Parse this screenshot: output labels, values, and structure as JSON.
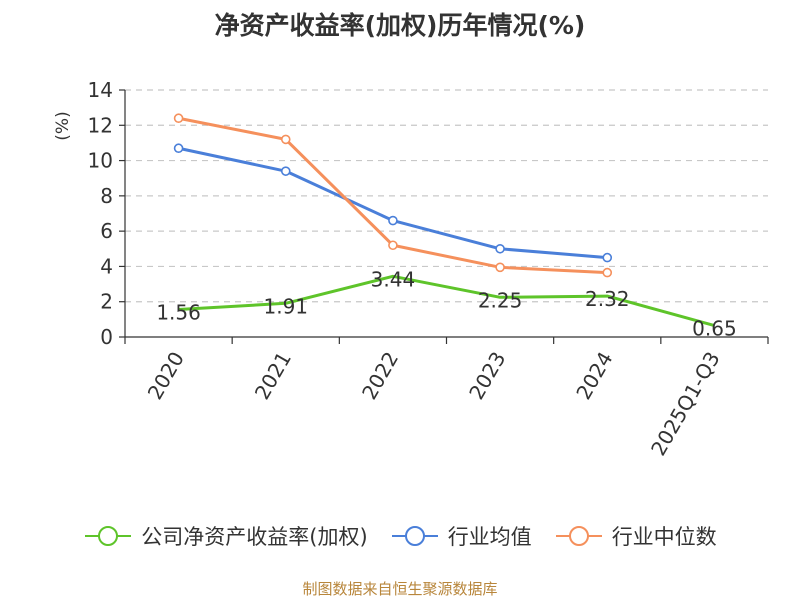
{
  "chart_data": {
    "type": "line",
    "title": "净资产收益率(加权)历年情况(%)",
    "ylabel": "(%)",
    "xlabel": "",
    "categories": [
      "2020",
      "2021",
      "2022",
      "2023",
      "2024",
      "2025Q1-Q3"
    ],
    "ylim": [
      0,
      14
    ],
    "yticks": [
      0,
      2,
      4,
      6,
      8,
      10,
      12,
      14
    ],
    "grid": true,
    "legend_position": "bottom",
    "series": [
      {
        "name": "公司净资产收益率(加权)",
        "color": "#5ec42a",
        "values": [
          1.56,
          1.91,
          3.44,
          2.25,
          2.32,
          0.65
        ],
        "labels": [
          "1.56",
          "1.91",
          "3.44",
          "2.25",
          "2.32",
          "0.65"
        ],
        "show_markers": false
      },
      {
        "name": "行业均值",
        "color": "#4a7fd9",
        "values": [
          10.7,
          9.4,
          6.6,
          5.0,
          4.5,
          null
        ],
        "show_markers": true
      },
      {
        "name": "行业中位数",
        "color": "#f5905c",
        "values": [
          12.4,
          11.2,
          5.2,
          3.95,
          3.65,
          null
        ],
        "show_markers": true
      }
    ]
  },
  "source": "制图数据来自恒生聚源数据库"
}
